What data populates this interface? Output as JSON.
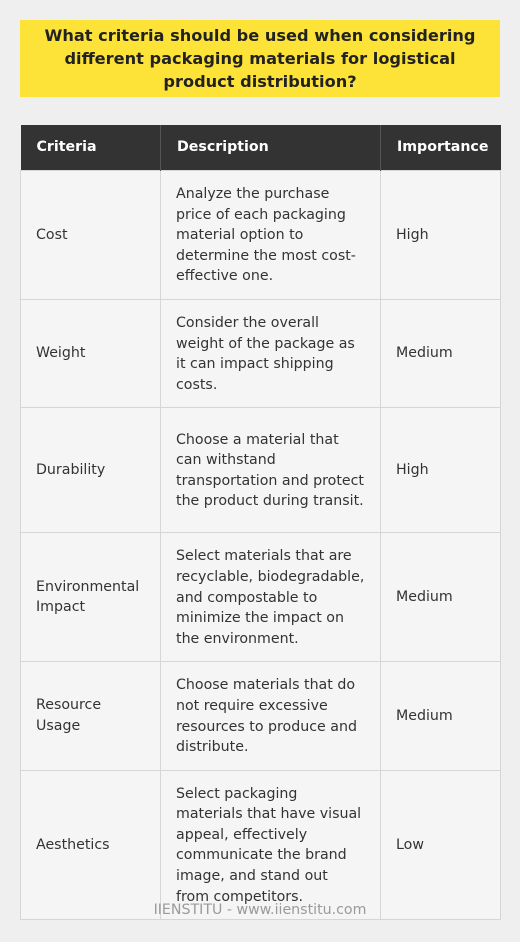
{
  "question": "What criteria should be used when considering different packaging materials for logistical product distribution?",
  "table": {
    "headers": [
      "Criteria",
      "Description",
      "Importance"
    ],
    "rows": [
      {
        "criteria": "Cost",
        "description": "Analyze the purchase price of each packaging material option to determine the most cost-effective one.",
        "importance": "High"
      },
      {
        "criteria": "Weight",
        "description": "Consider the overall weight of the package as it can impact shipping costs.",
        "importance": "Medium"
      },
      {
        "criteria": "Durability",
        "description": "Choose a material that can withstand transportation and protect the product during transit.",
        "importance": "High"
      },
      {
        "criteria": "Environmental Impact",
        "description": "Select materials that are recyclable, biodegradable, and compostable to minimize the impact on the environment.",
        "importance": "Medium"
      },
      {
        "criteria": "Resource Usage",
        "description": "Choose materials that do not require excessive resources to produce and distribute.",
        "importance": "Medium"
      },
      {
        "criteria": "Aesthetics",
        "description": "Select packaging materials that have visual appeal, effectively communicate the brand image, and stand out from competitors.",
        "importance": "Low"
      }
    ]
  },
  "footer": "IIENSTITU - www.iienstitu.com",
  "colors": {
    "background": "#efefef",
    "question_box": "#fde338",
    "header_bg": "#333333",
    "cell_bg": "#f5f5f5",
    "footer_text": "#9a9a9a"
  }
}
